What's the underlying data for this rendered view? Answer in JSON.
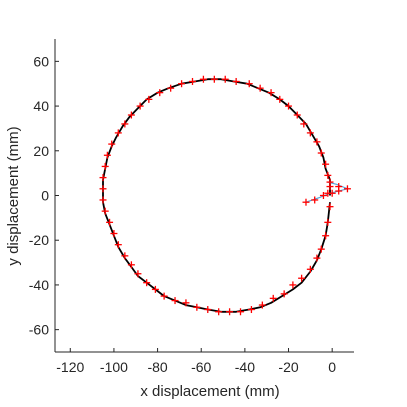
{
  "chart_data": {
    "type": "scatter",
    "title": "",
    "xlabel": "x displacement (mm)",
    "ylabel": "y displacement (mm)",
    "xlim": [
      -127,
      10
    ],
    "ylim": [
      -70,
      70
    ],
    "x_ticks": [
      -120,
      -100,
      -80,
      -60,
      -40,
      -20,
      0
    ],
    "y_ticks": [
      -60,
      -40,
      -20,
      0,
      20,
      40,
      60
    ],
    "grid": false,
    "legend": "none",
    "series": [
      {
        "type": "line",
        "color": "#000000",
        "points": [
          [
            -1,
            -3
          ],
          [
            -2,
            -12
          ],
          [
            -3,
            -18
          ],
          [
            -5,
            -24
          ],
          [
            -7,
            -29
          ],
          [
            -10,
            -34
          ],
          [
            -14,
            -39
          ],
          [
            -18,
            -42
          ],
          [
            -23,
            -45
          ],
          [
            -28,
            -48
          ],
          [
            -33,
            -50
          ],
          [
            -38,
            -51
          ],
          [
            -44,
            -52
          ],
          [
            -51,
            -52
          ],
          [
            -57,
            -51
          ],
          [
            -62,
            -50
          ],
          [
            -67,
            -49
          ],
          [
            -72,
            -47
          ],
          [
            -77,
            -45
          ],
          [
            -81,
            -42
          ],
          [
            -85,
            -39
          ],
          [
            -89,
            -36
          ],
          [
            -92,
            -32
          ],
          [
            -95,
            -28
          ],
          [
            -98,
            -23
          ],
          [
            -100,
            -18
          ],
          [
            -102,
            -13
          ],
          [
            -104,
            -8
          ],
          [
            -105,
            -3
          ],
          [
            -105,
            2
          ],
          [
            -105,
            7
          ],
          [
            -104,
            12
          ],
          [
            -103,
            17
          ],
          [
            -101,
            22
          ],
          [
            -99,
            26
          ],
          [
            -96,
            31
          ],
          [
            -93,
            35
          ],
          [
            -89,
            39
          ],
          [
            -85,
            43
          ],
          [
            -80,
            46
          ],
          [
            -75,
            48
          ],
          [
            -69,
            50
          ],
          [
            -63,
            51
          ],
          [
            -57,
            52
          ],
          [
            -51,
            52
          ],
          [
            -45,
            51
          ],
          [
            -39,
            50
          ],
          [
            -34,
            48
          ],
          [
            -29,
            46
          ],
          [
            -24,
            43
          ],
          [
            -20,
            40
          ],
          [
            -16,
            36
          ],
          [
            -12,
            32
          ],
          [
            -9,
            27
          ],
          [
            -6,
            22
          ],
          [
            -4,
            17
          ],
          [
            -3,
            12
          ],
          [
            -1,
            7
          ],
          [
            -1,
            0
          ]
        ]
      },
      {
        "type": "line",
        "color": "#4fa3d9",
        "points": [
          [
            -12,
            -3
          ],
          [
            -6,
            -1
          ],
          [
            -1,
            1
          ],
          [
            3,
            2
          ],
          [
            7,
            3
          ],
          [
            2,
            5
          ],
          [
            -2,
            6
          ]
        ]
      },
      {
        "type": "scatter",
        "color": "#ff0000",
        "marker": "+",
        "points": [
          [
            -1,
            -5
          ],
          [
            -2,
            -12
          ],
          [
            -3,
            -18
          ],
          [
            -5,
            -24
          ],
          [
            -7,
            -28
          ],
          [
            -10,
            -33
          ],
          [
            -14,
            -37
          ],
          [
            -18,
            -40
          ],
          [
            -22,
            -44
          ],
          [
            -27,
            -46
          ],
          [
            -32,
            -49
          ],
          [
            -37,
            -51
          ],
          [
            -42,
            -52
          ],
          [
            -47,
            -52
          ],
          [
            -52,
            -52
          ],
          [
            -57,
            -51
          ],
          [
            -62,
            -50
          ],
          [
            -67,
            -48
          ],
          [
            -72,
            -47
          ],
          [
            -77,
            -45
          ],
          [
            -81,
            -42
          ],
          [
            -85,
            -39
          ],
          [
            -89,
            -35
          ],
          [
            -92,
            -31
          ],
          [
            -95,
            -27
          ],
          [
            -98,
            -22
          ],
          [
            -100,
            -17
          ],
          [
            -102,
            -12
          ],
          [
            -104,
            -7
          ],
          [
            -105,
            -2
          ],
          [
            -105,
            3
          ],
          [
            -105,
            8
          ],
          [
            -104,
            13
          ],
          [
            -103,
            18
          ],
          [
            -101,
            23
          ],
          [
            -98,
            28
          ],
          [
            -95,
            32
          ],
          [
            -92,
            36
          ],
          [
            -88,
            40
          ],
          [
            -84,
            43
          ],
          [
            -79,
            46
          ],
          [
            -74,
            48
          ],
          [
            -69,
            50
          ],
          [
            -64,
            51
          ],
          [
            -59,
            52
          ],
          [
            -54,
            52
          ],
          [
            -49,
            52
          ],
          [
            -44,
            51
          ],
          [
            -38,
            50
          ],
          [
            -33,
            48
          ],
          [
            -28,
            46
          ],
          [
            -24,
            43
          ],
          [
            -20,
            40
          ],
          [
            -16,
            36
          ],
          [
            -13,
            32
          ],
          [
            -10,
            28
          ],
          [
            -7,
            24
          ],
          [
            -5,
            19
          ],
          [
            -3,
            14
          ],
          [
            -2,
            9
          ],
          [
            -1,
            4
          ],
          [
            -2,
            1
          ],
          [
            -12,
            -3
          ],
          [
            -8,
            -2
          ],
          [
            -4,
            0
          ],
          [
            0,
            1
          ],
          [
            3,
            2
          ],
          [
            7,
            3
          ],
          [
            3,
            4
          ],
          [
            -1,
            6
          ]
        ]
      }
    ]
  }
}
